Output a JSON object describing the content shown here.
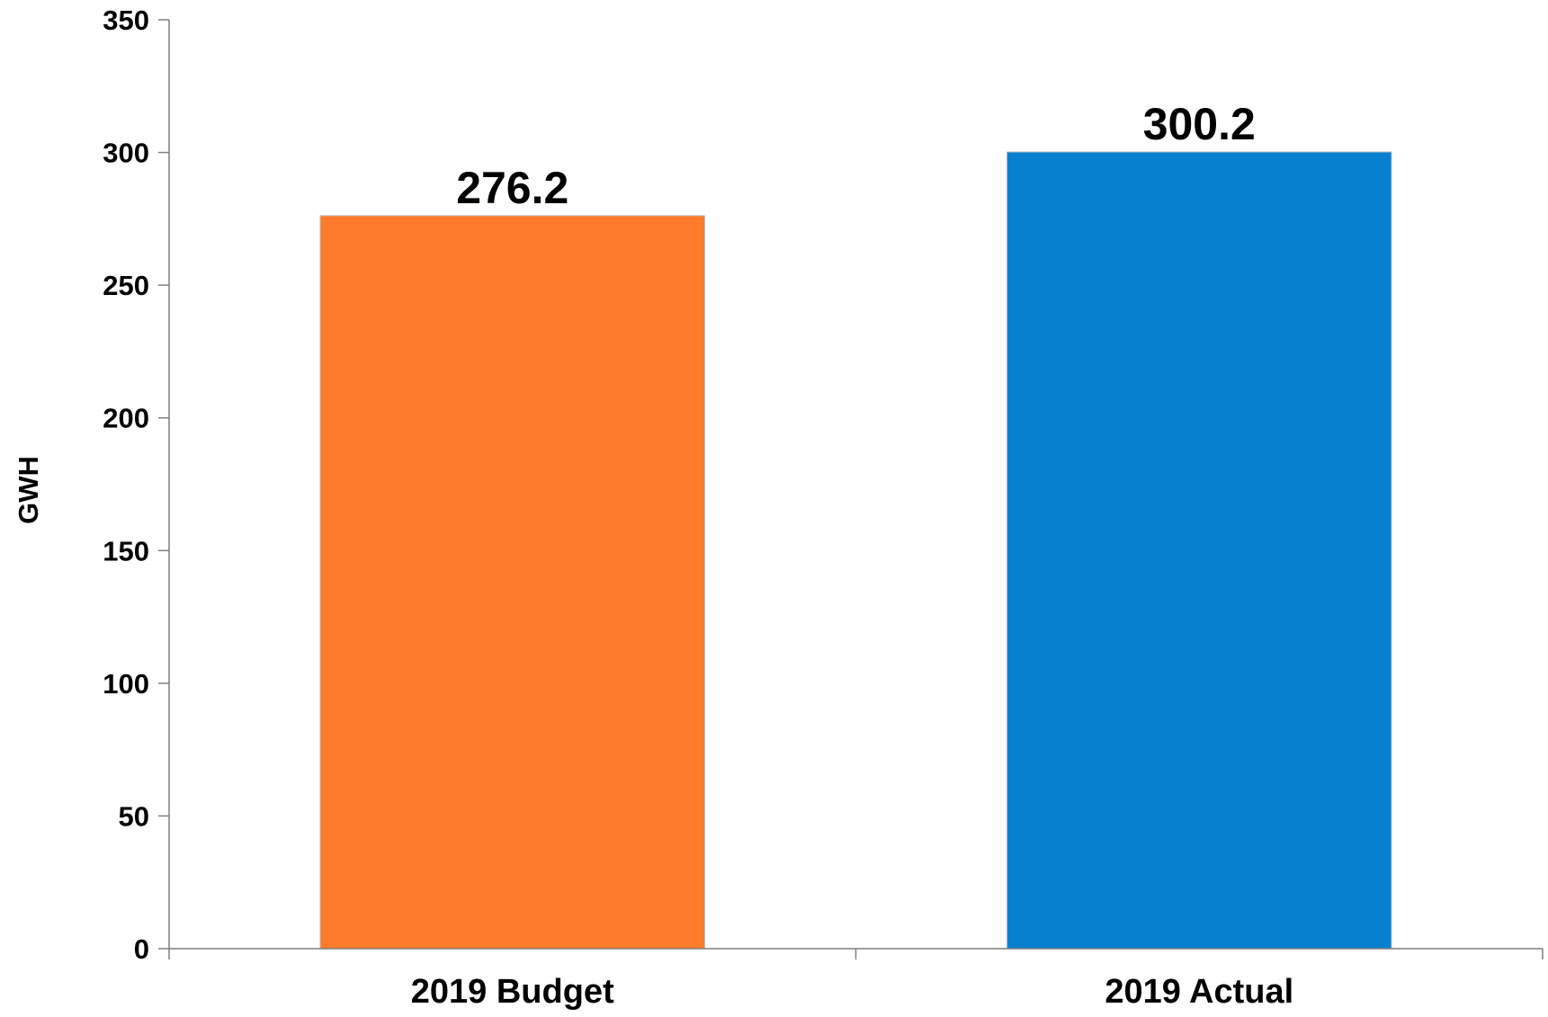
{
  "chart_data": {
    "type": "bar",
    "title": "",
    "xlabel": "",
    "ylabel": "GWH",
    "categories": [
      "2019 Budget",
      "2019 Actual"
    ],
    "values": [
      276.2,
      300.2
    ],
    "data_labels": [
      "276.2",
      "300.2"
    ],
    "ylim": [
      0,
      350
    ],
    "yticks": [
      0,
      50,
      100,
      150,
      200,
      250,
      300,
      350
    ],
    "colors": [
      "#FD7B2B",
      "#0880D0"
    ],
    "grid": false,
    "legend": "none"
  }
}
